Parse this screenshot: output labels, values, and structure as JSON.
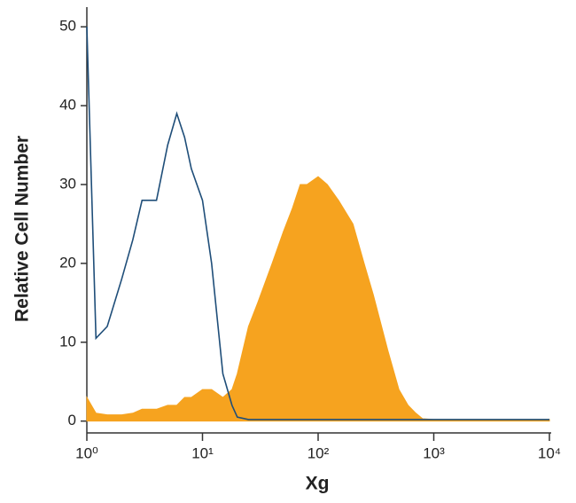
{
  "chart_data": {
    "type": "histogram-overlay",
    "x_label": "Xg",
    "y_label": "Relative Cell Number",
    "x": [
      1,
      1.2,
      1.5,
      2,
      2.5,
      3,
      4,
      5,
      6,
      7,
      8,
      10,
      12,
      15,
      18,
      20,
      25,
      30,
      40,
      50,
      60,
      70,
      80,
      100,
      120,
      150,
      200,
      250,
      300,
      400,
      500,
      600,
      700,
      800,
      1000,
      2000,
      5000,
      10000
    ],
    "series": [
      {
        "color": "#f6a31f",
        "fill": true,
        "values": [
          3,
          1,
          0.8,
          0.8,
          1,
          1.5,
          1.5,
          2,
          2,
          3,
          3,
          4,
          4,
          3,
          4,
          6,
          12,
          15,
          20,
          24,
          27,
          30,
          30,
          31,
          30,
          28,
          25,
          20,
          16,
          9,
          4,
          2,
          1,
          0.3,
          0.2,
          0.2,
          0.2,
          0.2
        ]
      },
      {
        "color": "#1f4e79",
        "fill": false,
        "values": [
          50,
          10.5,
          12,
          18,
          23,
          28,
          28,
          35,
          39,
          36,
          32,
          28,
          20,
          6,
          2,
          0.5,
          0.2,
          0.2,
          0.2,
          0.2,
          0.2,
          0.2,
          0.2,
          0.2,
          0.2,
          0.2,
          0.2,
          0.2,
          0.2,
          0.2,
          0.2,
          0.2,
          0.2,
          0.2,
          0.2,
          0.2,
          0.2,
          0.2
        ]
      }
    ],
    "xscale": "log",
    "xlim": [
      1,
      10000
    ],
    "xticks": [
      {
        "value": 1,
        "label": "10⁰"
      },
      {
        "value": 10,
        "label": "10¹"
      },
      {
        "value": 100,
        "label": "10²"
      },
      {
        "value": 1000,
        "label": "10³"
      },
      {
        "value": 10000,
        "label": "10⁴"
      }
    ],
    "ylim": [
      -1.5,
      52.5
    ],
    "yticks": [
      0,
      10,
      20,
      30,
      40,
      50
    ]
  }
}
